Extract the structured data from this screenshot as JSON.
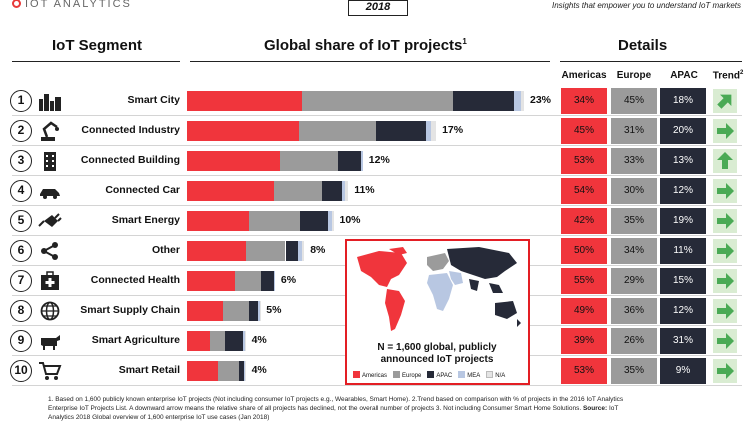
{
  "header": {
    "brand": "IOT ANALYTICS",
    "year": "2018",
    "tagline": "Insights that empower you to understand IoT markets"
  },
  "sections": {
    "segment": "IoT Segment",
    "share": "Global share of IoT projects",
    "share_sup": "1",
    "details": "Details"
  },
  "columns": {
    "americas": "Americas",
    "europe": "Europe",
    "apac": "APAC",
    "trend": "Trend",
    "trend_sup": "2"
  },
  "colors": {
    "americas": "#f0353c",
    "europe": "#9b9b9b",
    "apac": "#262a38",
    "mea": "#b8c7e2",
    "na": "#e4e4e4",
    "trend_up": "#2f9e4a",
    "trend_flat": "#4aaa55"
  },
  "chart_data": {
    "type": "bar",
    "stacked": true,
    "series_names": [
      "Americas",
      "Europe",
      "APAC",
      "MEA",
      "N/A"
    ],
    "rows": [
      {
        "rank": "1",
        "segment": "Smart City",
        "icon": "city-icon",
        "share": 23,
        "share_label": "23%",
        "americas": 34,
        "europe": 45,
        "apac": 18,
        "mea": 2,
        "na": 1,
        "americas_label": "34%",
        "europe_label": "45%",
        "apac_label": "18%",
        "trend": "up-right"
      },
      {
        "rank": "2",
        "segment": "Connected Industry",
        "icon": "robot-arm-icon",
        "share": 17,
        "share_label": "17%",
        "americas": 45,
        "europe": 31,
        "apac": 20,
        "mea": 2,
        "na": 2,
        "americas_label": "45%",
        "europe_label": "31%",
        "apac_label": "20%",
        "trend": "right"
      },
      {
        "rank": "3",
        "segment": "Connected Building",
        "icon": "building-icon",
        "share": 12,
        "share_label": "12%",
        "americas": 53,
        "europe": 33,
        "apac": 13,
        "mea": 1,
        "na": 0,
        "americas_label": "53%",
        "europe_label": "33%",
        "apac_label": "13%",
        "trend": "up"
      },
      {
        "rank": "4",
        "segment": "Connected Car",
        "icon": "car-icon",
        "share": 11,
        "share_label": "11%",
        "americas": 54,
        "europe": 30,
        "apac": 12,
        "mea": 2,
        "na": 2,
        "americas_label": "54%",
        "europe_label": "30%",
        "apac_label": "12%",
        "trend": "right"
      },
      {
        "rank": "5",
        "segment": "Smart Energy",
        "icon": "plug-icon",
        "share": 10,
        "share_label": "10%",
        "americas": 42,
        "europe": 35,
        "apac": 19,
        "mea": 3,
        "na": 1,
        "americas_label": "42%",
        "europe_label": "35%",
        "apac_label": "19%",
        "trend": "right"
      },
      {
        "rank": "6",
        "segment": "Other",
        "icon": "share-icon",
        "share": 8,
        "share_label": "8%",
        "americas": 50,
        "europe": 34,
        "apac": 11,
        "mea": 3,
        "na": 2,
        "americas_label": "50%",
        "europe_label": "34%",
        "apac_label": "11%",
        "trend": "right"
      },
      {
        "rank": "7",
        "segment": "Connected Health",
        "icon": "medical-kit-icon",
        "share": 6,
        "share_label": "6%",
        "americas": 55,
        "europe": 29,
        "apac": 15,
        "mea": 1,
        "na": 0,
        "americas_label": "55%",
        "europe_label": "29%",
        "apac_label": "15%",
        "trend": "right"
      },
      {
        "rank": "8",
        "segment": "Smart Supply Chain",
        "icon": "globe-icon",
        "share": 5,
        "share_label": "5%",
        "americas": 49,
        "europe": 36,
        "apac": 12,
        "mea": 2,
        "na": 1,
        "americas_label": "49%",
        "europe_label": "36%",
        "apac_label": "12%",
        "trend": "right"
      },
      {
        "rank": "9",
        "segment": "Smart Agriculture",
        "icon": "cow-icon",
        "share": 4,
        "share_label": "4%",
        "americas": 39,
        "europe": 26,
        "apac": 31,
        "mea": 3,
        "na": 1,
        "americas_label": "39%",
        "europe_label": "26%",
        "apac_label": "31%",
        "trend": "right"
      },
      {
        "rank": "10",
        "segment": "Smart Retail",
        "icon": "cart-icon",
        "share": 4,
        "share_label": "4%",
        "americas": 53,
        "europe": 35,
        "apac": 9,
        "mea": 2,
        "na": 1,
        "americas_label": "53%",
        "europe_label": "35%",
        "apac_label": "9%",
        "trend": "right"
      }
    ]
  },
  "map": {
    "caption_line1": "N = 1,600 global, publicly",
    "caption_line2": "announced IoT projects",
    "legend": [
      "Americas",
      "Europe",
      "APAC",
      "MEA",
      "N/A"
    ]
  },
  "footnote": {
    "line1": "1. Based on 1,600 publicly known enterprise IoT projects (Not including consumer IoT projects e.g., Wearables, Smart Home). 2.Trend based on comparison with % of projects in the 2016 IoT Analytics",
    "line2": "Enterprise IoT Projects List. A downward arrow means the relative share of all projects has declined, not the overall number of projects 3. Not including Consumer Smart Home Solutions.",
    "source_label": "Source:",
    "source_text": "IoT",
    "line3": "Analytics 2018 Global overview of 1,600 enterprise IoT use cases (Jan 2018)"
  }
}
